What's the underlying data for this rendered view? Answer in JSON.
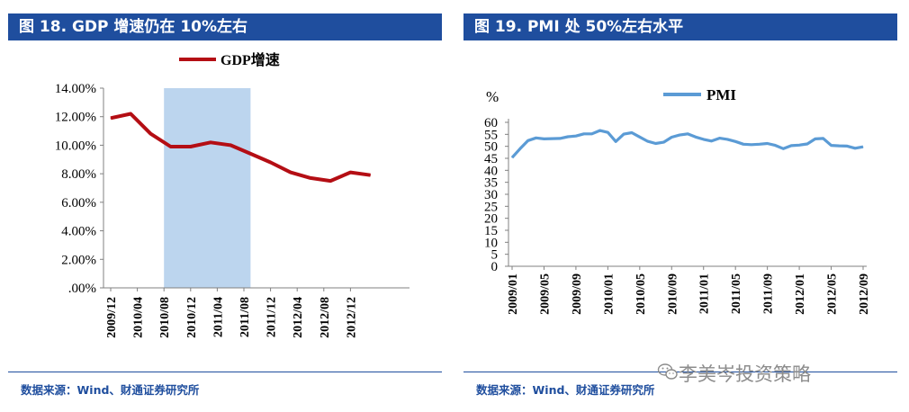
{
  "left": {
    "title": "图 18. GDP 增速仍在 10%左右",
    "source": "数据来源：Wind、财通证券研究所",
    "chart_data": {
      "type": "line",
      "title": "",
      "legend": [
        "GDP增速"
      ],
      "legend_position": "top-center",
      "series": [
        {
          "name": "GDP增速",
          "color": "#b40e14",
          "values": [
            11.9,
            12.2,
            10.8,
            9.9,
            9.9,
            10.2,
            10.0,
            9.4,
            8.8,
            8.1,
            7.7,
            7.5,
            8.1,
            7.9
          ]
        }
      ],
      "x": [
        "2009/12",
        "2010/03",
        "2010/06",
        "2010/09",
        "2010/12",
        "2011/03",
        "2011/06",
        "2011/09",
        "2011/12",
        "2012/03",
        "2012/06",
        "2012/09",
        "2012/12",
        "2013/03"
      ],
      "tick_labels": [
        "2009/12",
        "2010/04",
        "2010/08",
        "2010/12",
        "2011/04",
        "2011/08",
        "2011/12",
        "2012/04",
        "2012/08",
        "2012/12"
      ],
      "y_ticks": [
        ".00%",
        "2.00%",
        "4.00%",
        "6.00%",
        "8.00%",
        "10.00%",
        "12.00%",
        "14.00%"
      ],
      "ylim": [
        0,
        14
      ],
      "shaded_region": {
        "from": "2010/08",
        "to": "2011/09",
        "color": "#bcd5ee"
      }
    }
  },
  "right": {
    "title": "图 19. PMI 处 50%左右水平",
    "source": "数据来源：Wind、财通证券研究所",
    "chart_data": {
      "type": "line",
      "title": "",
      "ylabel": "%",
      "legend": [
        "PMI"
      ],
      "legend_position": "top-center",
      "series": [
        {
          "name": "PMI",
          "color": "#5b9bd5",
          "values": [
            45.3,
            49.0,
            52.4,
            53.5,
            53.1,
            53.2,
            53.3,
            54.0,
            54.3,
            55.2,
            55.2,
            56.6,
            55.8,
            52.0,
            55.1,
            55.7,
            53.9,
            52.1,
            51.2,
            51.7,
            53.8,
            54.7,
            55.2,
            53.9,
            52.9,
            52.2,
            53.4,
            52.9,
            52.0,
            50.9,
            50.7,
            50.9,
            51.2,
            50.4,
            49.0,
            50.3,
            50.5,
            51.0,
            53.1,
            53.3,
            50.4,
            50.2,
            50.1,
            49.2,
            49.8
          ]
        }
      ],
      "x_start": "2009/01",
      "tick_labels": [
        "2009/01",
        "2009/05",
        "2009/09",
        "2010/01",
        "2010/05",
        "2010/09",
        "2011/01",
        "2011/05",
        "2011/09",
        "2012/01",
        "2012/05",
        "2012/09"
      ],
      "y_ticks": [
        "0",
        "5",
        "10",
        "15",
        "20",
        "25",
        "30",
        "35",
        "40",
        "45",
        "50",
        "55",
        "60"
      ],
      "ylim": [
        0,
        60
      ]
    }
  },
  "watermark": "李美岑投资策略"
}
